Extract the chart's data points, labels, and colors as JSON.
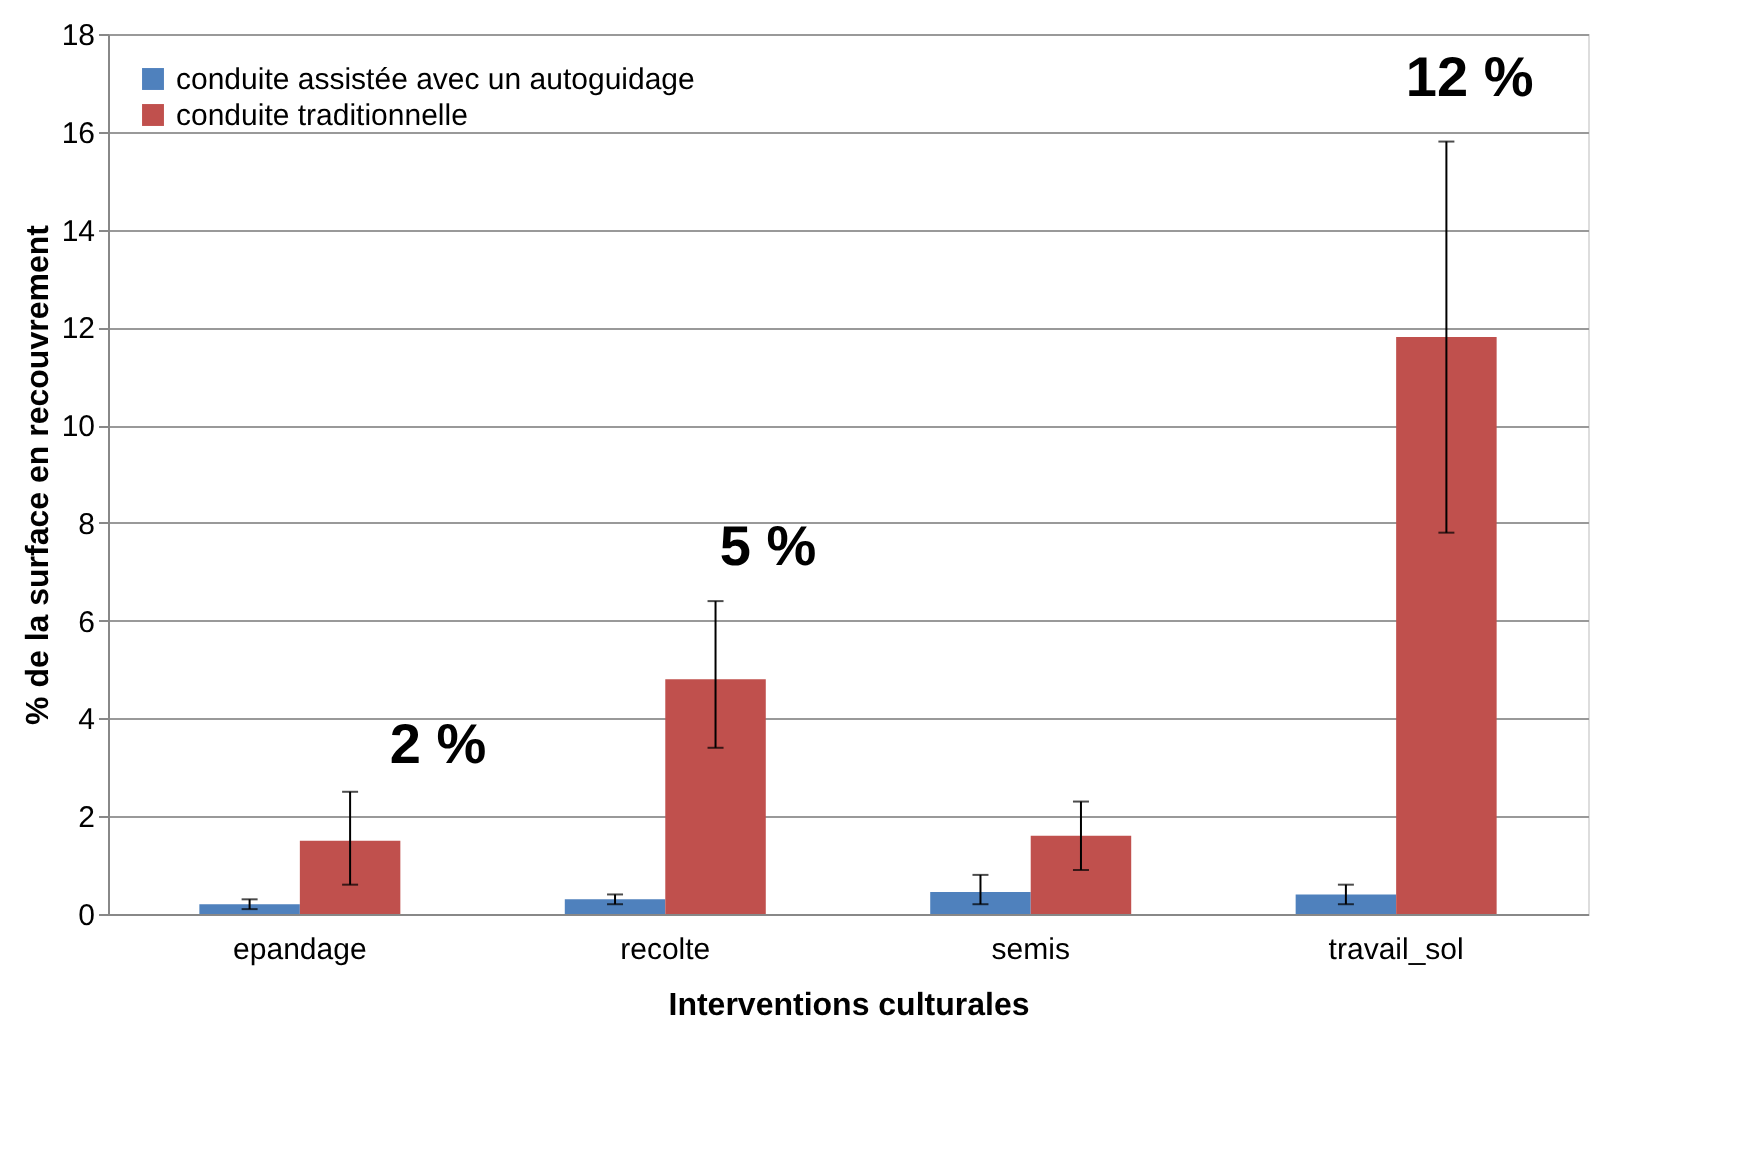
{
  "chart_data": {
    "type": "bar",
    "xlabel": "Interventions culturales",
    "ylabel": "% de la surface en recouvrement",
    "categories": [
      "epandage",
      "recolte",
      "semis",
      "travail_sol"
    ],
    "series": [
      {
        "name": "conduite assistée avec un autoguidage",
        "color": "#4f81bd",
        "values": [
          0.2,
          0.3,
          0.45,
          0.4
        ],
        "errors": [
          [
            0.1,
            0.3
          ],
          [
            0.2,
            0.4
          ],
          [
            0.2,
            0.8
          ],
          [
            0.2,
            0.6
          ]
        ]
      },
      {
        "name": "conduite traditionnelle",
        "color": "#c0504d",
        "values": [
          1.5,
          4.8,
          1.6,
          11.8
        ],
        "errors": [
          [
            0.6,
            2.5
          ],
          [
            3.4,
            6.4
          ],
          [
            0.9,
            2.3
          ],
          [
            7.8,
            15.8
          ]
        ]
      }
    ],
    "ylim": [
      0,
      18
    ],
    "yticks": [
      0,
      2,
      4,
      6,
      8,
      10,
      12,
      14,
      16,
      18
    ],
    "grid": "y",
    "legend": "top left",
    "annotations": [
      "2 %",
      "5 %",
      "12 %"
    ]
  }
}
